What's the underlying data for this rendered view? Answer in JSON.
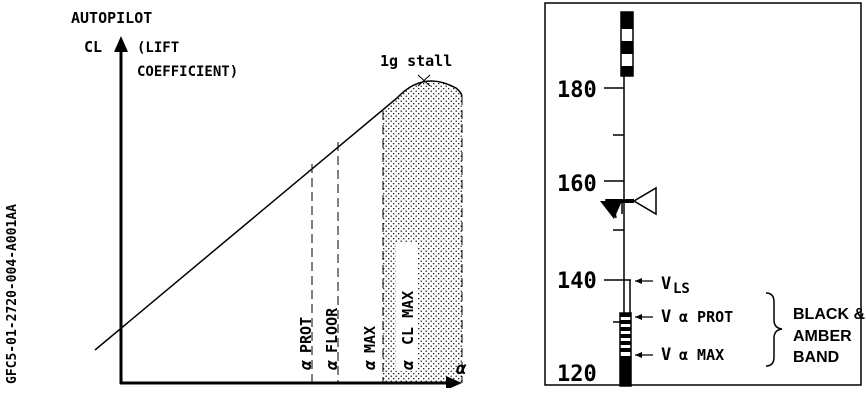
{
  "doc_id": "GFC5-01-2720-004-A001AA",
  "left_chart": {
    "header": "AUTOPILOT",
    "y_axis_symbol": "CL",
    "y_axis_desc_line1": "(LIFT",
    "y_axis_desc_line2": "COEFFICIENT)",
    "x_axis_symbol": "α",
    "stall_label": "1g stall",
    "markers": [
      {
        "alpha": "α",
        "label": "PROT"
      },
      {
        "alpha": "α",
        "label": "FLOOR"
      },
      {
        "alpha": "α",
        "label": "MAX"
      },
      {
        "alpha": "α",
        "label": "CL MAX"
      }
    ]
  },
  "speed_tape": {
    "ticks": [
      "180",
      "160",
      "140",
      "120"
    ],
    "speeds": [
      {
        "main": "V",
        "sub": "LS"
      },
      {
        "main": "V",
        "sub": "α PROT"
      },
      {
        "main": "V",
        "sub": "α MAX"
      }
    ],
    "band_label_lines": [
      "BLACK &",
      "AMBER",
      "BAND"
    ]
  }
}
